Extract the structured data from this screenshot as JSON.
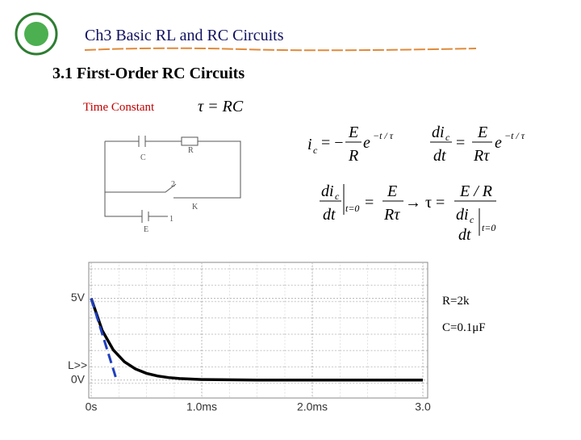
{
  "header": {
    "title": "Ch3 Basic RL and RC Circuits"
  },
  "section_title": "3.1 First-Order RC Circuits",
  "time_constant": {
    "label": "Time Constant",
    "formula": "τ = RC"
  },
  "circuit": {
    "labels": [
      "C",
      "R",
      "2",
      "K",
      "1",
      "E"
    ]
  },
  "equations": [
    {
      "parts": [
        "i",
        "c",
        "= −",
        "E",
        "R",
        "e",
        "−t / τ"
      ]
    },
    {
      "parts": [
        "di",
        "c",
        "dt",
        "=",
        "E",
        "Rτ",
        "e",
        "−t / τ"
      ]
    },
    {
      "parts": [
        "di",
        "c",
        "dt",
        "t=0",
        "=",
        "E",
        "Rτ",
        "→ τ =",
        "E / R",
        "di",
        "c",
        "dt",
        "t=0"
      ]
    }
  ],
  "chart_data": {
    "type": "line",
    "series": [
      {
        "color": "#000000",
        "x": [
          0,
          0.1,
          0.2,
          0.3,
          0.4,
          0.5,
          0.6,
          0.7,
          0.8,
          0.9,
          1.0,
          1.5,
          2.0,
          2.5,
          3.0
        ],
        "values": [
          5,
          3.03,
          1.84,
          1.12,
          0.68,
          0.41,
          0.25,
          0.15,
          0.09,
          0.06,
          0.03,
          0,
          0,
          0,
          0
        ]
      },
      {
        "color": "#1f3fbf",
        "x": [
          0,
          0.23
        ],
        "values": [
          5,
          0
        ],
        "dashed": true
      }
    ],
    "xlim": [
      0,
      3.0
    ],
    "ylim": [
      -1.1,
      7.2
    ],
    "xticks": [
      {
        "value": 0,
        "label": "0s"
      },
      {
        "value": 1,
        "label": "1.0ms"
      },
      {
        "value": 2,
        "label": "2.0ms"
      },
      {
        "value": 3,
        "label": "3.0"
      }
    ],
    "yticks": [
      {
        "value": 0,
        "label": "0V"
      },
      {
        "value": 5,
        "label": "5V"
      }
    ],
    "marker_label": "L>>",
    "annotations": [
      "R=2k",
      "C=0.1μF"
    ]
  }
}
